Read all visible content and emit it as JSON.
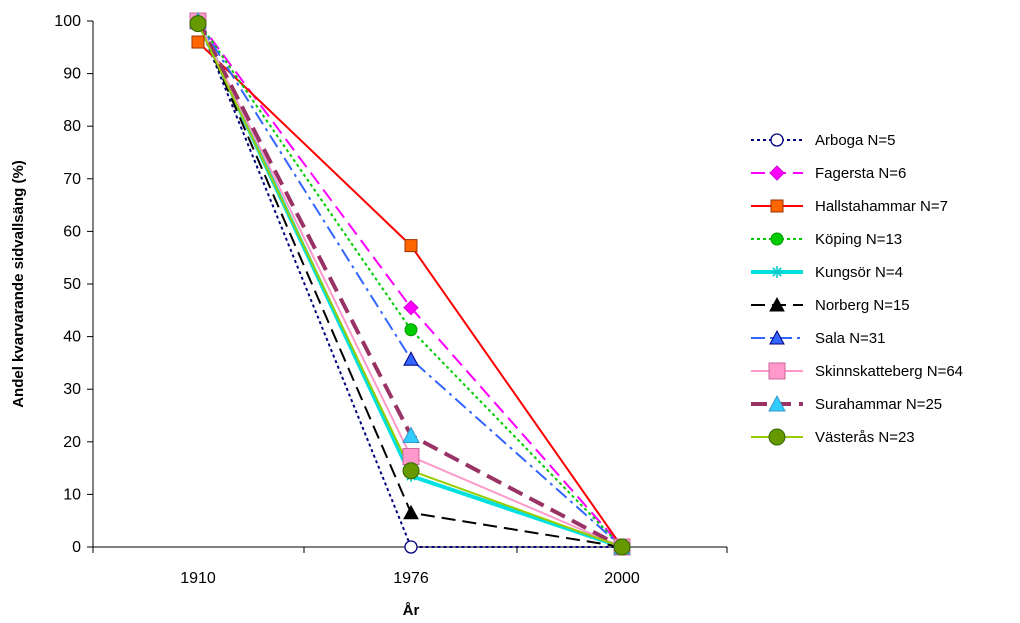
{
  "chart_data": {
    "type": "line",
    "title": "",
    "xlabel": "År",
    "ylabel": "Andel kvarvarande sidvallsäng (%)",
    "categories": [
      "1910",
      "1976",
      "2000"
    ],
    "ylim": [
      0,
      100
    ],
    "yticks": [
      "0",
      "10",
      "20",
      "30",
      "40",
      "50",
      "60",
      "70",
      "80",
      "90",
      "100"
    ],
    "grid": false,
    "legend_position": "right",
    "series": [
      {
        "name": "Arboga N=5",
        "values": [
          100,
          0,
          0
        ],
        "color": "#000080",
        "dash": "dotted",
        "marker": "circle-open"
      },
      {
        "name": "Fagersta N=6",
        "values": [
          100,
          45.5,
          0
        ],
        "color": "#ff00ff",
        "dash": "long-dash",
        "marker": "diamond"
      },
      {
        "name": "Hallstahammar N=7",
        "values": [
          96,
          57.3,
          0
        ],
        "color": "#ff0000",
        "dash": "solid",
        "marker": "square-orange"
      },
      {
        "name": "Köping N=13",
        "values": [
          100,
          41.3,
          0
        ],
        "color": "#00cc00",
        "dash": "dotted",
        "marker": "circle-green"
      },
      {
        "name": "Kungsör N=4",
        "values": [
          100,
          13.5,
          0
        ],
        "color": "#00e0e0",
        "dash": "solid-thick",
        "marker": "star"
      },
      {
        "name": "Norberg N=15",
        "values": [
          100,
          6.5,
          0
        ],
        "color": "#000000",
        "dash": "long-dash",
        "marker": "triangle-black"
      },
      {
        "name": "Sala N=31",
        "values": [
          100,
          35.7,
          0
        ],
        "color": "#3366ff",
        "dash": "dash-dot",
        "marker": "triangle-blue"
      },
      {
        "name": "Skinnskatteberg N=64",
        "values": [
          100,
          17.2,
          0
        ],
        "color": "#ff99cc",
        "dash": "solid",
        "marker": "square-pink"
      },
      {
        "name": "Surahammar N=25",
        "values": [
          100,
          21.2,
          0
        ],
        "color": "#993366",
        "dash": "heavy-dash",
        "marker": "triangle-cyan"
      },
      {
        "name": "Västerås N=23",
        "values": [
          99.5,
          14.5,
          0
        ],
        "color": "#99cc00",
        "dash": "solid",
        "marker": "circle-olive"
      }
    ]
  }
}
